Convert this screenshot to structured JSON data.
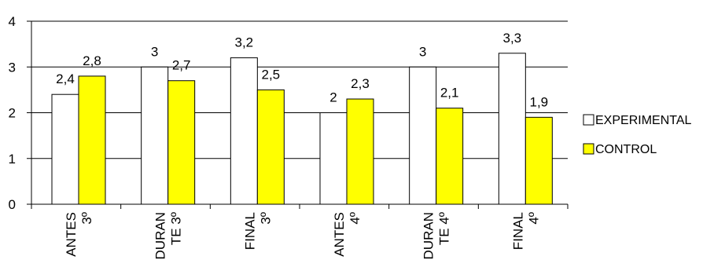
{
  "chart_data": {
    "type": "bar",
    "categories": [
      [
        "ANTES",
        "3º"
      ],
      [
        "DURAN",
        "TE 3º"
      ],
      [
        "FINAL",
        "3º"
      ],
      [
        "ANTES",
        "4º"
      ],
      [
        "DURAN",
        "TE 4º"
      ],
      [
        "FINAL",
        "4º"
      ]
    ],
    "series": [
      {
        "name": "EXPERIMENTAL",
        "values": [
          2.4,
          3,
          3.2,
          2,
          3,
          3.3
        ],
        "labels": [
          "2,4",
          "3",
          "3,2",
          "2",
          "3",
          "3,3"
        ],
        "color": "#FFFFFF"
      },
      {
        "name": "CONTROL",
        "values": [
          2.8,
          2.7,
          2.5,
          2.3,
          2.1,
          1.9
        ],
        "labels": [
          "2,8",
          "2,7",
          "2,5",
          "2,3",
          "2,1",
          "1,9"
        ],
        "color": "#FFFF00"
      }
    ],
    "yticks": [
      "0",
      "1",
      "2",
      "3",
      "4"
    ],
    "ylim": [
      0,
      4
    ],
    "grid": true,
    "legend_position": "right"
  }
}
